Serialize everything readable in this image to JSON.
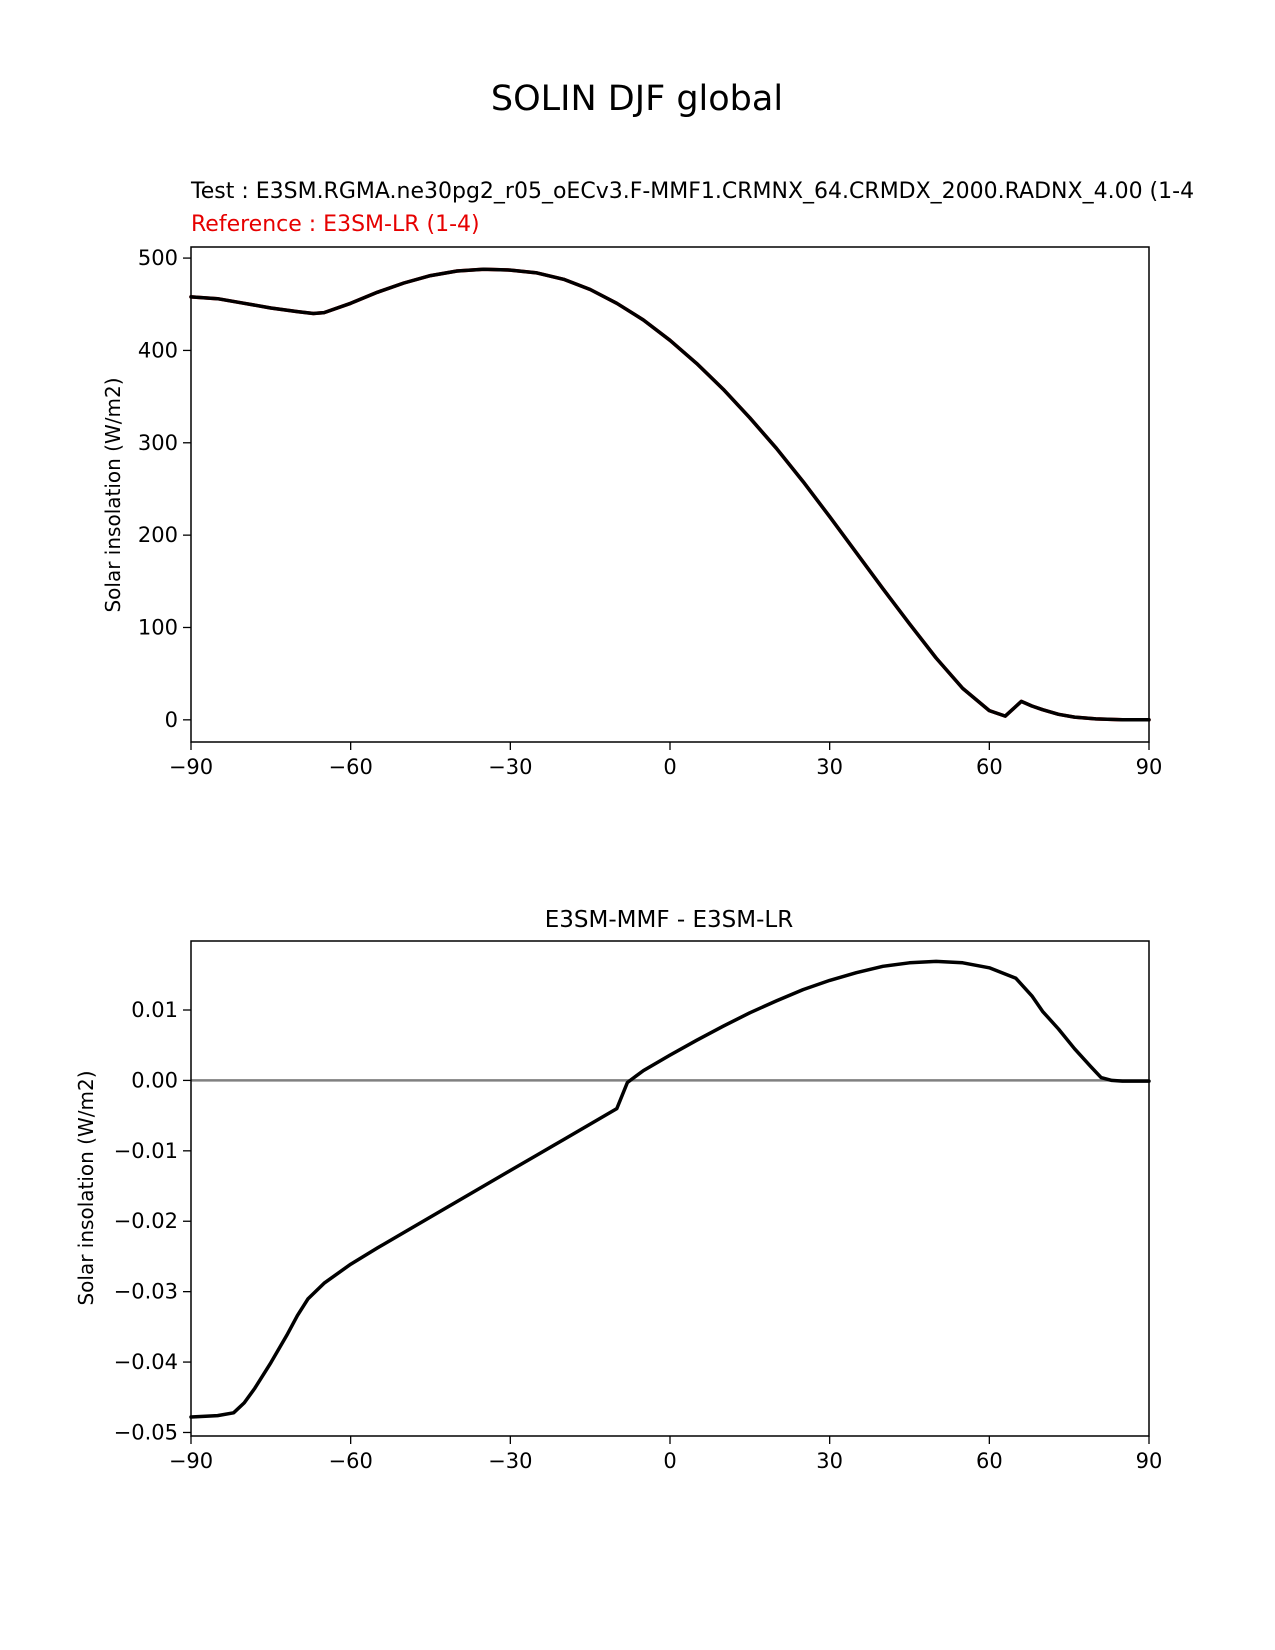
{
  "suptitle": "SOLIN DJF global",
  "chart_data": [
    {
      "type": "line",
      "test_label": "Test : E3SM.RGMA.ne30pg2_r05_oECv3.F-MMF1.CRMNX_64.CRMDX_2000.RADNX_4.00 (1-4",
      "reference_label": "Reference : E3SM-LR (1-4)",
      "ylabel": "Solar insolation (W/m2)",
      "xlim": [
        -90,
        90
      ],
      "ylim": [
        -24,
        512
      ],
      "xticks": [
        -90,
        -60,
        -30,
        0,
        30,
        60,
        90
      ],
      "xtick_labels": [
        "−90",
        "−60",
        "−30",
        "0",
        "30",
        "60",
        "90"
      ],
      "yticks": [
        0,
        100,
        200,
        300,
        400,
        500
      ],
      "ytick_labels": [
        "0",
        "100",
        "200",
        "300",
        "400",
        "500"
      ],
      "series": [
        {
          "color": "#e60000",
          "x": [
            -90,
            -85,
            -80,
            -75,
            -70,
            -67,
            -65,
            -60,
            -55,
            -50,
            -45,
            -40,
            -35,
            -30,
            -25,
            -20,
            -15,
            -10,
            -5,
            0,
            5,
            10,
            15,
            20,
            25,
            30,
            35,
            40,
            45,
            50,
            55,
            60,
            63,
            66,
            68,
            70,
            73,
            76,
            80,
            85,
            90
          ],
          "y": [
            458,
            456,
            451,
            446,
            442,
            440,
            441,
            451,
            463,
            473,
            481,
            486,
            488,
            487,
            484,
            477,
            466,
            451,
            433,
            411,
            386,
            358,
            327,
            294,
            258,
            220,
            181,
            142,
            104,
            67,
            34,
            10,
            4,
            20,
            15,
            11,
            6,
            3,
            1,
            0,
            0
          ]
        },
        {
          "color": "#000000",
          "x": [
            -90,
            -85,
            -80,
            -75,
            -70,
            -67,
            -65,
            -60,
            -55,
            -50,
            -45,
            -40,
            -35,
            -30,
            -25,
            -20,
            -15,
            -10,
            -5,
            0,
            5,
            10,
            15,
            20,
            25,
            30,
            35,
            40,
            45,
            50,
            55,
            60,
            63,
            66,
            68,
            70,
            73,
            76,
            80,
            85,
            90
          ],
          "y": [
            458,
            456,
            451,
            446,
            442,
            440,
            441,
            451,
            463,
            473,
            481,
            486,
            488,
            487,
            484,
            477,
            466,
            451,
            433,
            411,
            386,
            358,
            327,
            294,
            258,
            220,
            181,
            142,
            104,
            67,
            34,
            10,
            4,
            20,
            15,
            11,
            6,
            3,
            1,
            0,
            0
          ]
        }
      ]
    },
    {
      "type": "line",
      "title": "E3SM-MMF - E3SM-LR",
      "ylabel": "Solar insolation (W/m2)",
      "xlim": [
        -90,
        90
      ],
      "ylim": [
        -0.0505,
        0.0198
      ],
      "xticks": [
        -90,
        -60,
        -30,
        0,
        30,
        60,
        90
      ],
      "xtick_labels": [
        "−90",
        "−60",
        "−30",
        "0",
        "30",
        "60",
        "90"
      ],
      "yticks": [
        0.01,
        0.0,
        -0.01,
        -0.02,
        -0.03,
        -0.04,
        -0.05
      ],
      "ytick_labels": [
        "0.01",
        "0.00",
        "−0.01",
        "−0.02",
        "−0.03",
        "−0.04",
        "−0.05"
      ],
      "zero_line": 0,
      "series": [
        {
          "color": "#000000",
          "x": [
            -90,
            -85,
            -82,
            -80,
            -78,
            -75,
            -72,
            -70,
            -68,
            -65,
            -60,
            -55,
            -50,
            -45,
            -40,
            -35,
            -30,
            -25,
            -20,
            -15,
            -10,
            -8,
            -5,
            0,
            5,
            10,
            15,
            20,
            25,
            30,
            35,
            40,
            45,
            50,
            55,
            60,
            65,
            68,
            70,
            73,
            76,
            79,
            81,
            83,
            85,
            90
          ],
          "y": [
            -0.0478,
            -0.0476,
            -0.0472,
            -0.0458,
            -0.0437,
            -0.0401,
            -0.0362,
            -0.0334,
            -0.031,
            -0.0288,
            -0.0261,
            -0.0238,
            -0.0216,
            -0.0194,
            -0.0172,
            -0.015,
            -0.0128,
            -0.0106,
            -0.0084,
            -0.0062,
            -0.004,
            -0.0003,
            0.0014,
            0.0036,
            0.0057,
            0.0077,
            0.0096,
            0.0113,
            0.0129,
            0.0142,
            0.0153,
            0.0162,
            0.0167,
            0.0169,
            0.0167,
            0.016,
            0.0145,
            0.012,
            0.0098,
            0.0073,
            0.0045,
            0.002,
            0.0004,
            0.0,
            -0.0001,
            -0.0001
          ]
        }
      ]
    }
  ]
}
